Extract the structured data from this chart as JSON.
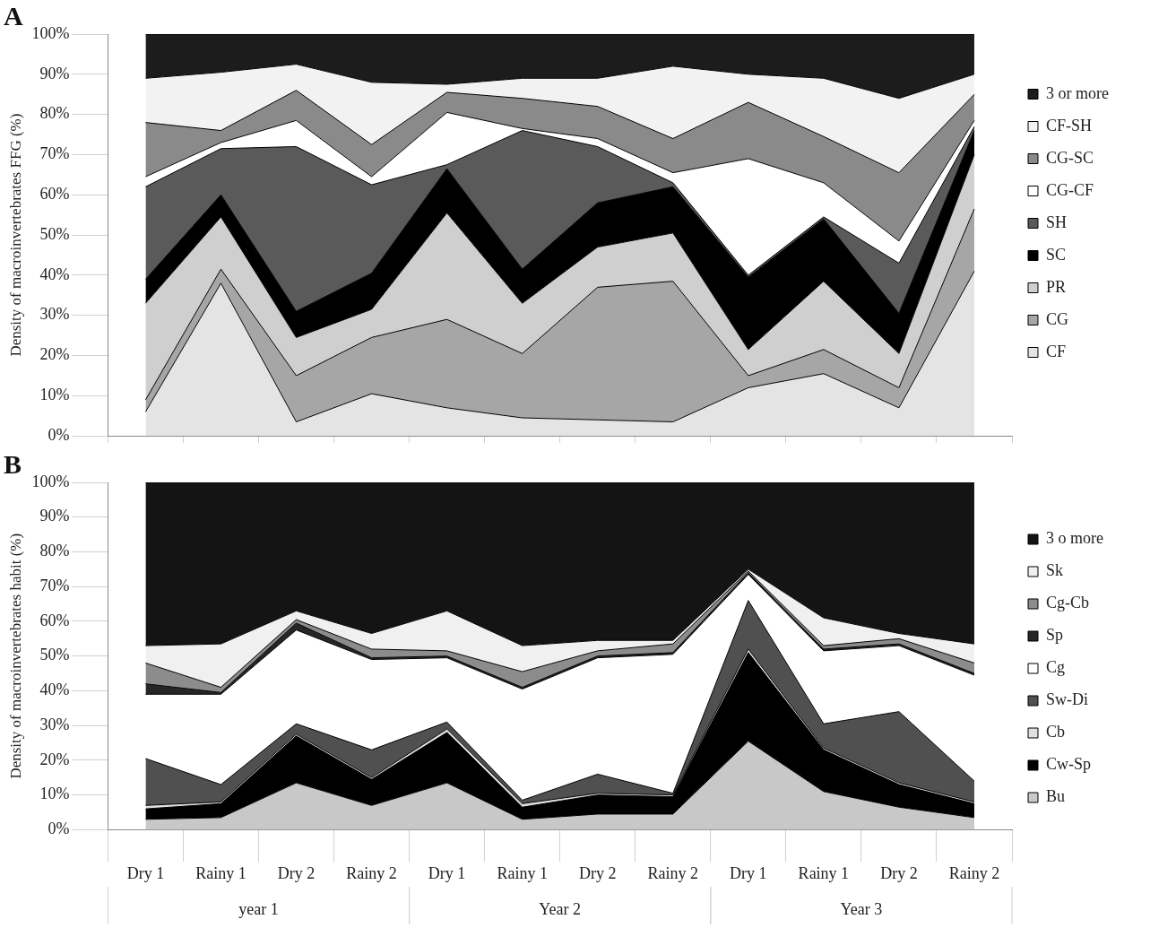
{
  "chart_data": [
    {
      "type": "area",
      "title": "A",
      "ylabel": "Density of macroinvertebrates FFG (%)",
      "stacked": true,
      "legend": "right",
      "tick_labels": "y",
      "grid": false,
      "categories": [
        null,
        null,
        null,
        null,
        null,
        null,
        null,
        null,
        null,
        null,
        null,
        null
      ],
      "ylim": [
        0,
        100
      ],
      "yticks": [
        {
          "value": 0,
          "label": "0%"
        },
        {
          "value": 10,
          "label": "10%"
        },
        {
          "value": 20,
          "label": "20%"
        },
        {
          "value": 30,
          "label": "30%"
        },
        {
          "value": 40,
          "label": "40%"
        },
        {
          "value": 50,
          "label": "50%"
        },
        {
          "value": 60,
          "label": "60%"
        },
        {
          "value": 70,
          "label": "70%"
        },
        {
          "value": 80,
          "label": "80%"
        },
        {
          "value": 90,
          "label": "90%"
        },
        {
          "value": 100,
          "label": "100%"
        }
      ],
      "series": [
        {
          "name": "CF",
          "color": "#e4e4e4",
          "values": [
            6,
            38,
            3.5,
            10.5,
            7,
            4.5,
            4,
            3.5,
            12,
            15.5,
            7,
            41
          ]
        },
        {
          "name": "CG",
          "color": "#a6a6a6",
          "values": [
            3,
            3.5,
            11.5,
            14,
            22,
            16,
            33,
            35,
            3,
            6,
            5,
            15.5
          ]
        },
        {
          "name": "PR",
          "color": "#cfcfcf",
          "values": [
            24,
            13,
            9.5,
            7,
            26.5,
            12.5,
            10,
            12,
            6.5,
            17,
            8.5,
            13.5
          ]
        },
        {
          "name": "SC",
          "color": "#000000",
          "values": [
            6,
            5.5,
            6.5,
            9,
            11,
            8.5,
            11,
            11.5,
            18,
            15.5,
            10,
            6
          ]
        },
        {
          "name": "SH",
          "color": "#5a5a5a",
          "values": [
            23,
            11.5,
            41,
            22,
            1,
            34.5,
            14,
            1,
            0.5,
            0.5,
            12.5,
            1
          ]
        },
        {
          "name": "CG-CF",
          "color": "#ffffff",
          "values": [
            2.5,
            1.5,
            6.5,
            2,
            13,
            0.5,
            2,
            2.5,
            29,
            8.5,
            5.5,
            1.5
          ]
        },
        {
          "name": "CG-SC",
          "color": "#8a8a8a",
          "values": [
            13.5,
            3,
            7.5,
            8,
            5,
            7.5,
            8,
            8.5,
            14,
            11.5,
            17,
            6.5
          ]
        },
        {
          "name": "CF-SH",
          "color": "#f2f2f2",
          "values": [
            11,
            14.5,
            6.5,
            15.5,
            2,
            5,
            7,
            18,
            7,
            14.5,
            18.5,
            5
          ]
        },
        {
          "name": "3 or more",
          "color": "#1c1c1c",
          "values": [
            11,
            9.5,
            7.5,
            12,
            12.5,
            11,
            11,
            8,
            10,
            11,
            16,
            10
          ]
        }
      ]
    },
    {
      "type": "area",
      "title": "B",
      "ylabel": "Density of macroinvertebrates habit (%)",
      "stacked": true,
      "legend": "right",
      "grid": false,
      "categories": [
        "Dry 1",
        "Rainy 1",
        "Dry 2",
        "Rainy 2",
        "Dry 1",
        "Rainy 1",
        "Dry 2",
        "Rainy 2",
        "Dry 1",
        "Rainy 1",
        "Dry 2",
        "Rainy 2"
      ],
      "annotations": [
        "year 1",
        "Year 2",
        "Year 3"
      ],
      "ylim": [
        0,
        100
      ],
      "yticks": [
        {
          "value": 0,
          "label": "0%"
        },
        {
          "value": 10,
          "label": "10%"
        },
        {
          "value": 20,
          "label": "20%"
        },
        {
          "value": 30,
          "label": "30%"
        },
        {
          "value": 40,
          "label": "40%"
        },
        {
          "value": 50,
          "label": "50%"
        },
        {
          "value": 60,
          "label": "60%"
        },
        {
          "value": 70,
          "label": "70%"
        },
        {
          "value": 80,
          "label": "80%"
        },
        {
          "value": 90,
          "label": "90%"
        },
        {
          "value": 100,
          "label": "100%"
        }
      ],
      "series": [
        {
          "name": "Bu",
          "color": "#c8c8c8",
          "values": [
            3,
            3.5,
            13.5,
            7,
            13.5,
            3,
            4.5,
            4.5,
            25.5,
            11,
            6.5,
            3.5
          ]
        },
        {
          "name": "Cw-Sp",
          "color": "#000000",
          "values": [
            3,
            4,
            13.5,
            7.5,
            14.5,
            3.5,
            5.5,
            5,
            25.5,
            12,
            6.5,
            4
          ]
        },
        {
          "name": "Cb",
          "color": "#e0e0e0",
          "values": [
            1,
            0.5,
            0.5,
            0.5,
            1,
            1,
            0.5,
            0.5,
            1,
            0.5,
            0.5,
            0.5
          ]
        },
        {
          "name": "Sw-Di",
          "color": "#505050",
          "values": [
            13.5,
            5,
            3,
            8,
            2,
            1,
            5.5,
            0.5,
            14,
            7,
            20.5,
            6
          ]
        },
        {
          "name": "Cg",
          "color": "#ffffff",
          "values": [
            18.5,
            26,
            27,
            26,
            18.5,
            32,
            33.5,
            40,
            7.5,
            21,
            19,
            30.5
          ]
        },
        {
          "name": "Sp",
          "color": "#262626",
          "values": [
            3,
            0.5,
            2,
            0.5,
            0.5,
            0.5,
            0.5,
            0.5,
            0.5,
            0.5,
            0.5,
            0.5
          ]
        },
        {
          "name": "Cg-Cb",
          "color": "#8c8c8c",
          "values": [
            6,
            1.5,
            1,
            2.5,
            1.5,
            4.5,
            1.5,
            2.5,
            0.5,
            1,
            1.5,
            3
          ]
        },
        {
          "name": "Sk",
          "color": "#f0f0f0",
          "values": [
            5,
            12.5,
            2.5,
            4.5,
            11.5,
            7.5,
            3,
            1,
            0.5,
            8,
            1.5,
            5.5
          ]
        },
        {
          "name": "3 o more",
          "color": "#141414",
          "values": [
            47,
            46.5,
            37,
            43.5,
            37,
            47,
            45.5,
            45.5,
            25,
            39,
            43.5,
            46.5
          ]
        }
      ]
    }
  ]
}
